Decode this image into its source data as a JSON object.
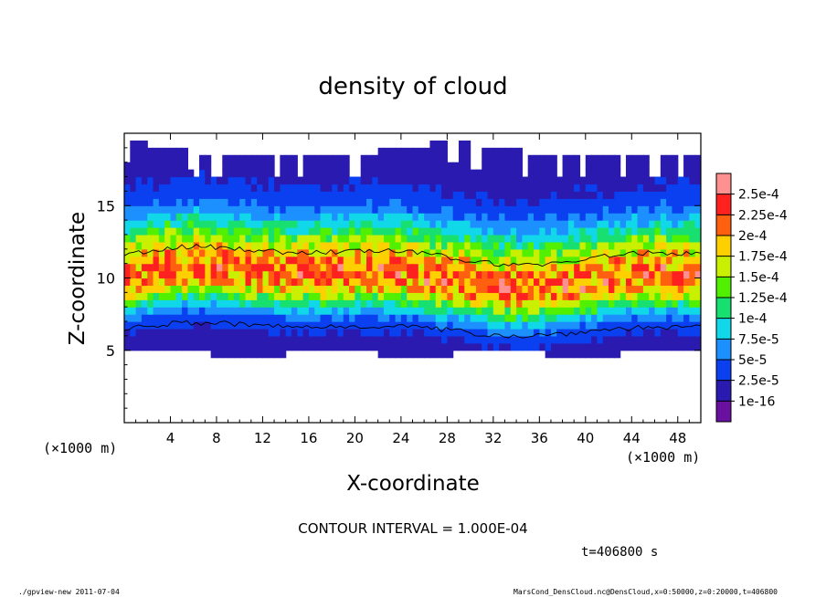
{
  "chart_data": {
    "type": "heatmap",
    "title": "density of cloud",
    "xlabel": "X-coordinate",
    "ylabel": "Z-coordinate",
    "x_unit_left": "(×1000 m)",
    "x_unit_right": "(×1000 m)",
    "xlim": [
      0,
      50
    ],
    "ylim": [
      0,
      20
    ],
    "xticks": [
      "4",
      "8",
      "12",
      "16",
      "20",
      "24",
      "28",
      "32",
      "36",
      "40",
      "44",
      "48"
    ],
    "xtick_values": [
      4,
      8,
      12,
      16,
      20,
      24,
      28,
      32,
      36,
      40,
      44,
      48
    ],
    "yticks": [
      "5",
      "10",
      "15"
    ],
    "ytick_values": [
      5,
      10,
      15
    ],
    "colorbar": {
      "labels": [
        "1e-16",
        "2.5e-5",
        "5e-5",
        "7.5e-5",
        "1e-4",
        "1.25e-4",
        "1.5e-4",
        "1.75e-4",
        "2e-4",
        "2.25e-4",
        "2.5e-4"
      ],
      "values": [
        1e-16,
        2.5e-05,
        5e-05,
        7.5e-05,
        0.0001,
        0.000125,
        0.00015,
        0.000175,
        0.0002,
        0.000225,
        0.00025
      ],
      "colors": [
        "#6a10a0",
        "#2a1ab0",
        "#0a40f0",
        "#1c90ff",
        "#10d8e8",
        "#18e070",
        "#50f000",
        "#c8f000",
        "#ffd000",
        "#ff6010",
        "#ff2020",
        "#ff9090"
      ]
    },
    "cloud_layer": {
      "base_z": 4.8,
      "top_z": 19.5,
      "core_bottom_z": 6.5,
      "core_top_z": 12.0,
      "peak_z": 10.0
    },
    "contour_interval": "CONTOUR INTERVAL = 1.000E-04",
    "time_label": "t=406800 s",
    "footer_left": "./gpview-new  2011-07-04",
    "footer_right": "MarsCond_DensCloud.nc@DensCloud,x=0:50000,z=0:20000,t=406800"
  }
}
